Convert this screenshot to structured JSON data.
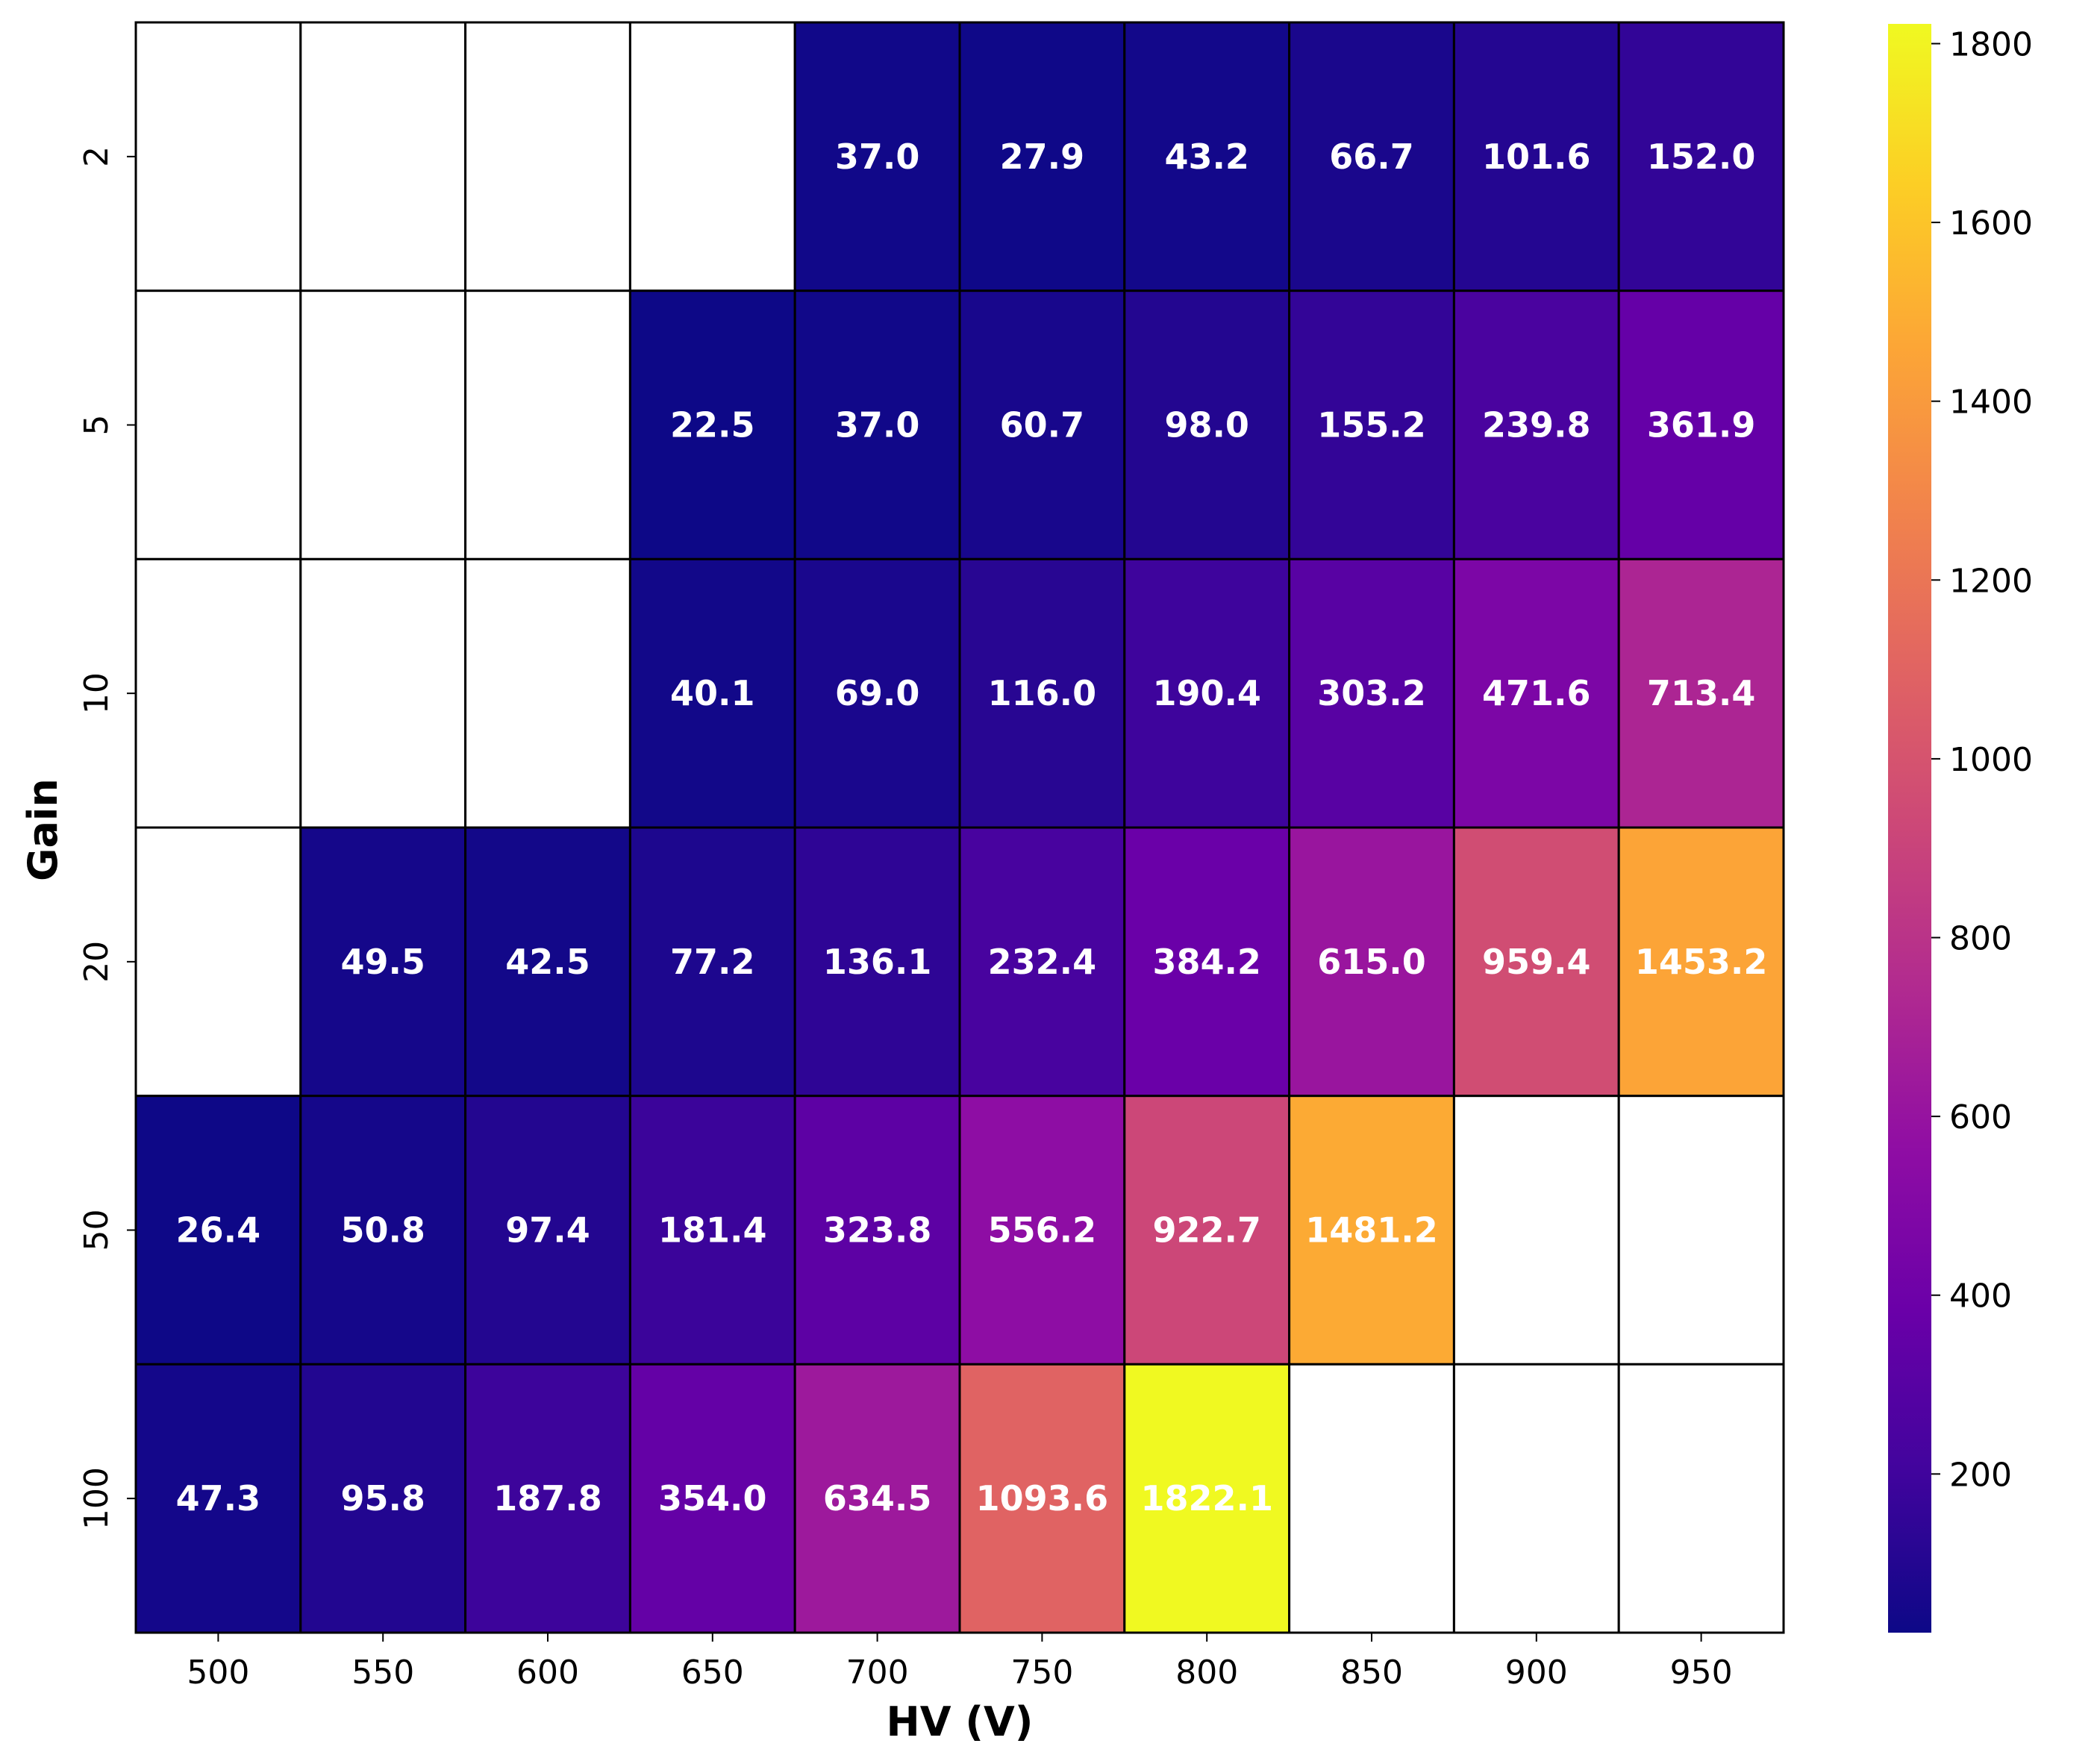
{
  "chart_data": {
    "type": "heatmap",
    "title": "",
    "xlabel": "HV (V)",
    "ylabel": "Gain",
    "x_categories": [
      "500",
      "550",
      "600",
      "650",
      "700",
      "750",
      "800",
      "850",
      "900",
      "950"
    ],
    "y_categories": [
      "2",
      "5",
      "10",
      "20",
      "50",
      "100"
    ],
    "values": [
      [
        null,
        null,
        null,
        null,
        37.0,
        27.9,
        43.2,
        66.7,
        101.6,
        152.0
      ],
      [
        null,
        null,
        null,
        22.5,
        37.0,
        60.7,
        98.0,
        155.2,
        239.8,
        361.9
      ],
      [
        null,
        null,
        null,
        40.1,
        69.0,
        116.0,
        190.4,
        303.2,
        471.6,
        713.4
      ],
      [
        null,
        49.5,
        42.5,
        77.2,
        136.1,
        232.4,
        384.2,
        615.0,
        959.4,
        1453.2
      ],
      [
        26.4,
        50.8,
        97.4,
        181.4,
        323.8,
        556.2,
        922.7,
        1481.2,
        null,
        null
      ],
      [
        47.3,
        95.8,
        187.8,
        354.0,
        634.5,
        1093.6,
        1822.1,
        null,
        null,
        null
      ]
    ],
    "colormap": "plasma",
    "color_range": [
      22.5,
      1822.1
    ],
    "colorbar_ticks": [
      "200",
      "400",
      "600",
      "800",
      "1000",
      "1200",
      "1400",
      "1600",
      "1800"
    ],
    "colorbar_tick_values": [
      200,
      400,
      600,
      800,
      1000,
      1200,
      1400,
      1600,
      1800
    ],
    "cell_border_color": "#000000",
    "label_color": "#ffffff",
    "missing_color": "#ffffff",
    "legend": "colorbar-right"
  }
}
